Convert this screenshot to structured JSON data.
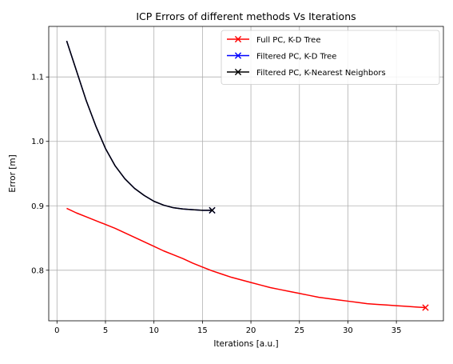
{
  "chart_data": {
    "type": "line",
    "title": "ICP Errors of different methods Vs Iterations",
    "xlabel": "Iterations [a.u.]",
    "ylabel": "Error [m]",
    "xlim": [
      -0.85,
      39.85
    ],
    "ylim": [
      0.7215,
      1.1785
    ],
    "xticks": [
      0,
      5,
      10,
      15,
      20,
      25,
      30,
      35
    ],
    "yticks": [
      0.8,
      0.9,
      1.0,
      1.1
    ],
    "ytick_labels": [
      "0.8",
      "0.9",
      "1.0",
      "1.1"
    ],
    "grid": true,
    "legend_position": "top-right",
    "series": [
      {
        "name": "Full PC, K-D Tree",
        "color": "#ff0000",
        "marker": "x",
        "marker_at": "last",
        "x": [
          1,
          2,
          3,
          4,
          5,
          6,
          7,
          8,
          9,
          10,
          11,
          12,
          13,
          14,
          15,
          16,
          17,
          18,
          19,
          20,
          21,
          22,
          23,
          24,
          25,
          26,
          27,
          28,
          29,
          30,
          31,
          32,
          33,
          34,
          35,
          36,
          37,
          38
        ],
        "y": [
          0.896,
          0.889,
          0.883,
          0.877,
          0.871,
          0.865,
          0.858,
          0.851,
          0.844,
          0.837,
          0.83,
          0.824,
          0.818,
          0.811,
          0.805,
          0.799,
          0.794,
          0.789,
          0.785,
          0.781,
          0.777,
          0.773,
          0.77,
          0.767,
          0.764,
          0.761,
          0.758,
          0.756,
          0.754,
          0.752,
          0.75,
          0.748,
          0.747,
          0.746,
          0.745,
          0.744,
          0.743,
          0.742
        ]
      },
      {
        "name": "Filtered PC, K-D Tree",
        "color": "#0000ff",
        "marker": "x",
        "marker_at": "last",
        "x": [
          1,
          2,
          3,
          4,
          5,
          6,
          7,
          8,
          9,
          10,
          11,
          12,
          13,
          14,
          15,
          16
        ],
        "y": [
          1.156,
          1.11,
          1.064,
          1.024,
          0.989,
          0.962,
          0.942,
          0.927,
          0.916,
          0.907,
          0.901,
          0.897,
          0.895,
          0.894,
          0.893,
          0.893
        ]
      },
      {
        "name": "Filtered PC, K-Nearest Neighbors",
        "color": "#000000",
        "marker": "x",
        "marker_at": "last",
        "x": [
          1,
          2,
          3,
          4,
          5,
          6,
          7,
          8,
          9,
          10,
          11,
          12,
          13,
          14,
          15,
          16
        ],
        "y": [
          1.156,
          1.11,
          1.064,
          1.024,
          0.989,
          0.962,
          0.942,
          0.927,
          0.916,
          0.907,
          0.901,
          0.897,
          0.895,
          0.894,
          0.893,
          0.893
        ]
      }
    ]
  }
}
